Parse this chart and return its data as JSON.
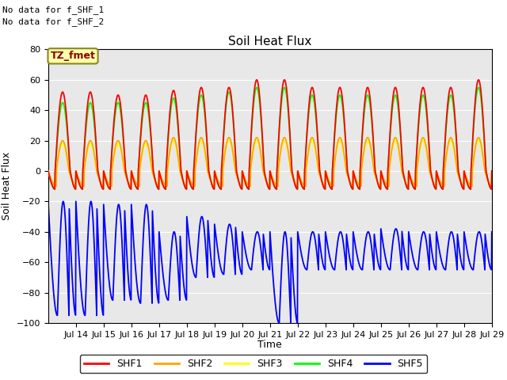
{
  "title": "Soil Heat Flux",
  "ylabel": "Soil Heat Flux",
  "xlabel": "Time",
  "ylim": [
    -100,
    80
  ],
  "annotation1": "No data for f_SHF_1",
  "annotation2": "No data for f_SHF_2",
  "tz_label": "TZ_fmet",
  "series_colors": [
    "red",
    "orange",
    "yellow",
    "lime",
    "blue"
  ],
  "series_labels": [
    "SHF1",
    "SHF2",
    "SHF3",
    "SHF4",
    "SHF5"
  ],
  "xtick_labels": [
    "Jul 14",
    "Jul 15",
    "Jul 16",
    "Jul 17",
    "Jul 18",
    "Jul 19",
    "Jul 20",
    "Jul 21",
    "Jul 22",
    "Jul 23",
    "Jul 24",
    "Jul 25",
    "Jul 26",
    "Jul 27",
    "Jul 28",
    "Jul 29"
  ],
  "shf1_peaks": [
    52,
    50,
    50,
    53,
    55,
    55,
    60,
    60,
    55,
    55,
    55,
    55,
    55,
    55,
    60,
    65
  ],
  "shf2_peaks": [
    20,
    20,
    20,
    22,
    22,
    22,
    22,
    22,
    22,
    22,
    22,
    22,
    22,
    22,
    22,
    22
  ],
  "shf3_peaks": [
    18,
    18,
    18,
    20,
    20,
    20,
    20,
    20,
    20,
    20,
    20,
    20,
    20,
    20,
    20,
    20
  ],
  "shf4_peaks": [
    45,
    45,
    45,
    48,
    50,
    52,
    55,
    55,
    50,
    50,
    50,
    50,
    50,
    50,
    55,
    60
  ],
  "shf5_troughs_day": [
    -95,
    -85,
    -87,
    -85,
    -70,
    -68,
    -65,
    -100,
    -65,
    -65,
    -65,
    -65,
    -65,
    -65,
    -65,
    -65
  ],
  "shf5_day_peaks": [
    -20,
    -22,
    -22,
    -40,
    -30,
    -35,
    -40,
    -40,
    -40,
    -40,
    -40,
    -38,
    -40,
    -40,
    -40,
    -40
  ],
  "bg_color": "#ffffff",
  "plot_bg_color": "#e8e8e8",
  "grid_color": "#ffffff"
}
